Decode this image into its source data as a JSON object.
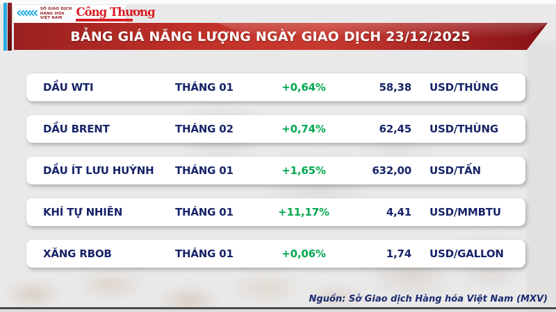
{
  "header": {
    "title": "BẢNG GIÁ NĂNG LƯỢNG NGÀY GIAO DỊCH 23/12/2025"
  },
  "logos": {
    "mxv": {
      "chevrons": "«««",
      "line1": "SỞ GIAO DỊCH",
      "line2": "HÀNG HÓA",
      "line3": "VIỆT NAM"
    },
    "cong_thuong": "Công Thương"
  },
  "footer": {
    "source": "Nguồn: Sở Giao dịch Hàng hóa Việt Nam (MXV)"
  },
  "colors": {
    "banner_red": "#bf3028",
    "navy_text": "#172468",
    "green_change": "#00a84f",
    "cyan_stripe": "#29abe2",
    "maroon_stripe": "#8e1b1d",
    "background": "#e9e9e9"
  },
  "chart_data": {
    "type": "table",
    "title": "BẢNG GIÁ NĂNG LƯỢNG NGÀY GIAO DỊCH 23/12/2025",
    "source": "Nguồn: Sở Giao dịch Hàng hóa Việt Nam (MXV)",
    "rows": [
      {
        "name": "DẦU WTI",
        "month": "THÁNG 01",
        "change": "+0,64%",
        "price": "58,38",
        "unit": "USD/THÙNG"
      },
      {
        "name": "DẦU BRENT",
        "month": "THÁNG 02",
        "change": "+0,74%",
        "price": "62,45",
        "unit": "USD/THÙNG"
      },
      {
        "name": "DẦU ÍT LƯU HUỲNH",
        "month": "THÁNG 01",
        "change": "+1,65%",
        "price": "632,00",
        "unit": "USD/TẤN"
      },
      {
        "name": "KHÍ TỰ NHIÊN",
        "month": "THÁNG 01",
        "change": "+11,17%",
        "price": "4,41",
        "unit": "USD/MMBTU"
      },
      {
        "name": "XĂNG RBOB",
        "month": "THÁNG 01",
        "change": "+0,06%",
        "price": "1,74",
        "unit": "USD/GALLON"
      }
    ]
  }
}
